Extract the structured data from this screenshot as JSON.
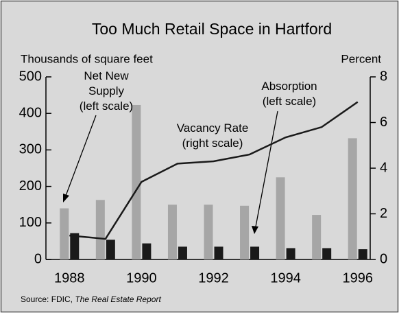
{
  "chart_data": {
    "type": "bar",
    "title": "Too Much Retail Space in Hartford",
    "y_axis_label": "Thousands of square feet",
    "y2_axis_label": "Percent",
    "categories": [
      "1988",
      null,
      "1990",
      null,
      "1992",
      null,
      "1994",
      null,
      "1996"
    ],
    "series": [
      {
        "color": "#a6a6a6",
        "values": [
          140,
          163,
          423,
          150,
          150,
          147,
          225,
          122,
          332
        ]
      },
      {
        "color": "#1a1a1a",
        "values": [
          72,
          54,
          44,
          35,
          35,
          35,
          31,
          31,
          28
        ]
      },
      {
        "type": "line",
        "axis": "y2",
        "color": "#1a1a1a",
        "values": [
          1.05,
          0.9,
          3.4,
          4.2,
          4.3,
          4.6,
          5.35,
          5.8,
          6.9
        ]
      }
    ],
    "ylim": [
      0,
      500
    ],
    "yticks": [
      0,
      100,
      200,
      300,
      400,
      500
    ],
    "y2lim": [
      0,
      8
    ],
    "y2ticks": [
      0,
      2,
      4,
      6,
      8
    ],
    "annotations": [
      {
        "lines": [
          "Net New",
          "Supply",
          "(left scale)"
        ]
      },
      {
        "lines": [
          "Absorption",
          "(left scale)"
        ]
      },
      {
        "lines": [
          "Vacancy Rate",
          "(right scale)"
        ]
      }
    ],
    "source": {
      "prefix": "Source:  FDIC,",
      "title": "The Real Estate Report"
    }
  }
}
